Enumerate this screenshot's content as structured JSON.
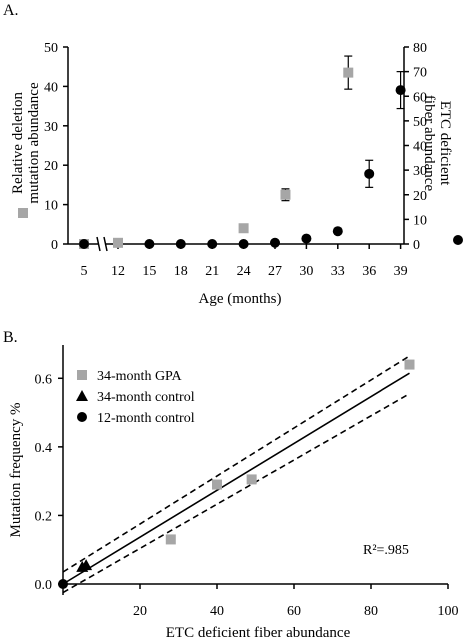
{
  "panels": {
    "a": {
      "label": "A."
    },
    "b": {
      "label": "B."
    }
  },
  "colors": {
    "gray_square": "#a6a6a6",
    "black": "#000000"
  },
  "chart_data": [
    {
      "type": "scatter",
      "panel": "A",
      "title": "",
      "xlabel": "Age (months)",
      "ylabel": "Relative deletion mutation abundance",
      "ylabel_lines": [
        "Relative deletion",
        "mutation abundance"
      ],
      "y2label": "ETC deficient fiber abundance",
      "y2label_lines": [
        "ETC deficient",
        "fiber abundance"
      ],
      "categories": [
        "5",
        "12",
        "15",
        "18",
        "21",
        "24",
        "27",
        "30",
        "33",
        "36",
        "39"
      ],
      "axis_break_between": [
        "5",
        "12"
      ],
      "ylim": [
        0,
        50
      ],
      "yticks": [
        0,
        10,
        20,
        30,
        40,
        50
      ],
      "y2lim": [
        0,
        80
      ],
      "y2ticks": [
        0,
        10,
        20,
        30,
        40,
        50,
        60,
        70,
        80
      ],
      "series": [
        {
          "marker": "square",
          "color": "#a6a6a6",
          "axis": "left",
          "points": [
            {
              "x": "5",
              "y": 0,
              "err": 0
            },
            {
              "x": "12",
              "y": 0.3,
              "err": 0
            },
            {
              "x": "24",
              "y": 4,
              "err": 0
            },
            {
              "x": "28",
              "y": 12.5,
              "err": 1.5
            },
            {
              "x": "34",
              "y": 43.5,
              "err": 4.2
            }
          ]
        },
        {
          "marker": "circle",
          "color": "#000000",
          "axis": "right",
          "points": [
            {
              "x": "5",
              "y": 0,
              "err": 0
            },
            {
              "x": "15",
              "y": 0,
              "err": 0
            },
            {
              "x": "18",
              "y": 0,
              "err": 0
            },
            {
              "x": "21",
              "y": 0,
              "err": 0
            },
            {
              "x": "24",
              "y": 0,
              "err": 0
            },
            {
              "x": "27",
              "y": 0.5,
              "err": 0
            },
            {
              "x": "30",
              "y": 2.2,
              "err": 0
            },
            {
              "x": "33",
              "y": 5.2,
              "err": 0
            },
            {
              "x": "36",
              "y": 28.5,
              "err": 5.5
            },
            {
              "x": "39",
              "y": 62.5,
              "err": 7.5
            }
          ]
        }
      ]
    },
    {
      "type": "scatter",
      "panel": "B",
      "title": "",
      "xlabel": "ETC deficient fiber abundance",
      "ylabel": "Mutation frequency %",
      "xlim": [
        0,
        100
      ],
      "xticks": [
        20,
        40,
        60,
        80,
        100
      ],
      "ylim": [
        0,
        0.7
      ],
      "yticks": [
        0.0,
        0.2,
        0.4,
        0.6
      ],
      "ytick_labels": [
        "0.0",
        "0.2",
        "0.4",
        "0.6"
      ],
      "legend_position": "top-left",
      "annotation": "R²=.985",
      "series": [
        {
          "name": "34-month GPA",
          "marker": "square",
          "color": "#a6a6a6",
          "points": [
            [
              28,
              0.13
            ],
            [
              40,
              0.29
            ],
            [
              49,
              0.305
            ],
            [
              90,
              0.64
            ]
          ]
        },
        {
          "name": "34-month control",
          "marker": "triangle",
          "color": "#000000",
          "points": [
            [
              5,
              0.05
            ],
            [
              6,
              0.055
            ]
          ]
        },
        {
          "name": "12-month control",
          "marker": "circle",
          "color": "#000000",
          "points": [
            [
              0,
              0
            ]
          ]
        }
      ],
      "fit_line": {
        "x": [
          0,
          90
        ],
        "y": [
          0.0,
          0.615
        ]
      },
      "confidence_upper": {
        "x": [
          0,
          90
        ],
        "y": [
          0.035,
          0.665
        ]
      },
      "confidence_lower": {
        "x": [
          0,
          90
        ],
        "y": [
          -0.025,
          0.555
        ]
      }
    }
  ]
}
